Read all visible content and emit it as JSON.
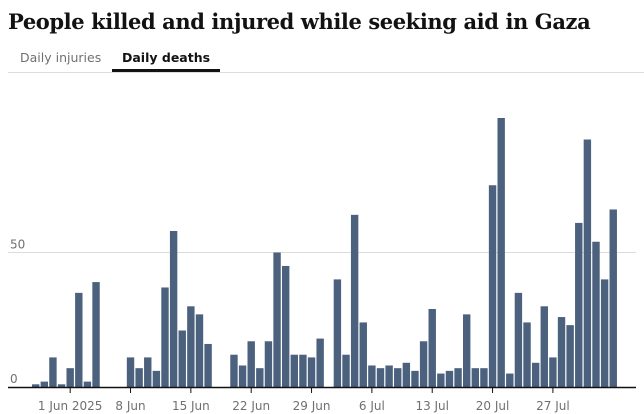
{
  "title": "People killed and injured while seeking aid in Gaza",
  "tabs": [
    {
      "label": "Daily injuries",
      "active": false
    },
    {
      "label": "Daily deaths",
      "active": true
    }
  ],
  "colors": {
    "bar": "#4b617e",
    "grid": "#dcdcdc",
    "axis": "#121212",
    "tick_text": "#707070"
  },
  "chart_data": {
    "type": "bar",
    "title": "People killed and injured while seeking aid in Gaza",
    "xlabel": "",
    "ylabel": "",
    "ylim": [
      0,
      100
    ],
    "yticks": [
      0,
      50
    ],
    "grid": true,
    "x_start": "2025-05-28",
    "xticks": [
      {
        "date": "2025-06-01",
        "label": "1 Jun 2025"
      },
      {
        "date": "2025-06-08",
        "label": "8 Jun"
      },
      {
        "date": "2025-06-15",
        "label": "15 Jun"
      },
      {
        "date": "2025-06-22",
        "label": "22 Jun"
      },
      {
        "date": "2025-06-29",
        "label": "29 Jun"
      },
      {
        "date": "2025-07-06",
        "label": "6 Jul"
      },
      {
        "date": "2025-07-13",
        "label": "13 Jul"
      },
      {
        "date": "2025-07-20",
        "label": "20 Jul"
      },
      {
        "date": "2025-07-27",
        "label": "27 Jul"
      }
    ],
    "series": [
      {
        "values": [
          1,
          2,
          11,
          1,
          7,
          35,
          2,
          39,
          0,
          0,
          0,
          11,
          7,
          11,
          6,
          37,
          58,
          21,
          30,
          27,
          16,
          0,
          0,
          12,
          8,
          17,
          7,
          17,
          50,
          45,
          12,
          12,
          11,
          18,
          0,
          40,
          12,
          64,
          24,
          8,
          7,
          8,
          7,
          9,
          6,
          17,
          29,
          5,
          6,
          7,
          27,
          7,
          7,
          75,
          100,
          5,
          35,
          24,
          9,
          30,
          11,
          26,
          23,
          61,
          92,
          54,
          40,
          66
        ]
      }
    ]
  }
}
